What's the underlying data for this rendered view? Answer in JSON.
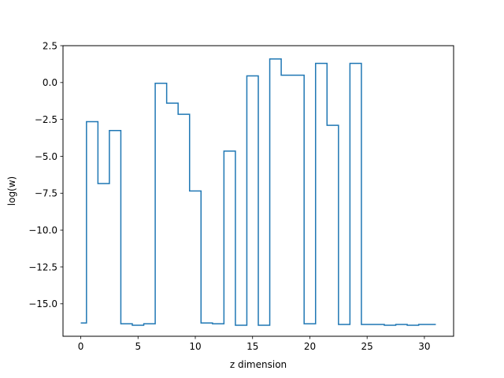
{
  "chart_data": {
    "type": "line",
    "drawstyle": "steps-mid",
    "title": "",
    "xlabel": "z dimension",
    "ylabel": "log(w)",
    "xlim": [
      -1.55,
      32.55
    ],
    "ylim": [
      -17.2,
      2.5
    ],
    "xticks": [
      0,
      5,
      10,
      15,
      20,
      25,
      30
    ],
    "xtick_labels": [
      "0",
      "5",
      "10",
      "15",
      "20",
      "25",
      "30"
    ],
    "yticks": [
      2.5,
      0.0,
      -2.5,
      -5.0,
      -7.5,
      -10.0,
      -12.5,
      -15.0
    ],
    "ytick_labels": [
      "2.5",
      "0.0",
      "−2.5",
      "−5.0",
      "−7.5",
      "−10.0",
      "−12.5",
      "−15.0"
    ],
    "grid": false,
    "legend": false,
    "series": [
      {
        "color": "#1f77b4",
        "x": [
          0,
          1,
          2,
          3,
          4,
          5,
          6,
          7,
          8,
          9,
          10,
          11,
          12,
          13,
          14,
          15,
          16,
          17,
          18,
          19,
          20,
          21,
          22,
          23,
          24,
          25,
          26,
          27,
          28,
          29,
          30,
          31
        ],
        "y": [
          -16.3,
          -2.65,
          -6.85,
          -3.25,
          -16.35,
          -16.45,
          -16.35,
          -0.05,
          -1.4,
          -2.15,
          -7.35,
          -16.3,
          -16.35,
          -4.65,
          -16.45,
          0.45,
          -16.45,
          1.6,
          0.5,
          0.5,
          -16.35,
          1.3,
          -2.9,
          -16.4,
          1.3,
          -16.4,
          -16.4,
          -16.45,
          -16.4,
          -16.45,
          -16.4,
          -16.4
        ]
      }
    ]
  }
}
